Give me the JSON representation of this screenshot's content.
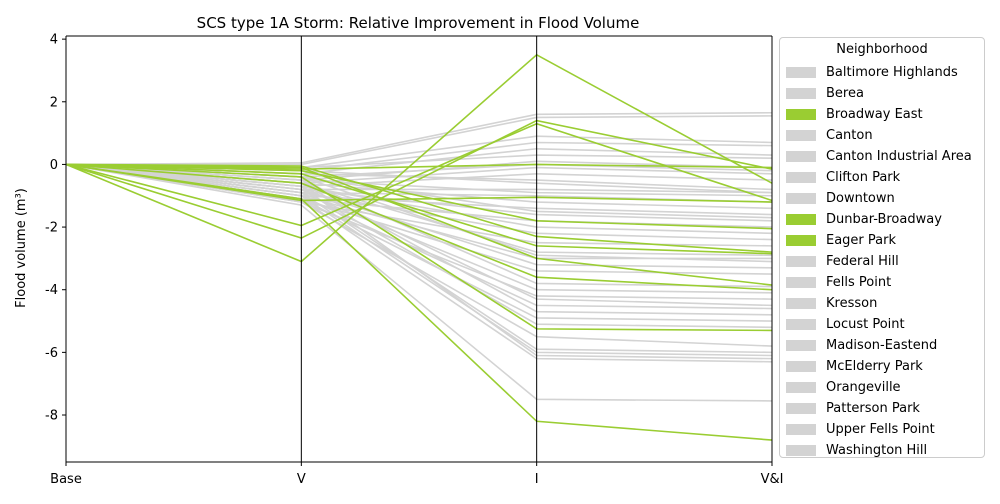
{
  "chart_data": {
    "type": "line",
    "title": "SCS type 1A Storm: Relative Improvement in Flood Volume",
    "xlabel": "",
    "ylabel": "Flood volume (m³)",
    "x": [
      "Base",
      "V",
      "I",
      "V&I"
    ],
    "ylim": [
      -9.5,
      4.1
    ],
    "yticks": [
      4,
      2,
      0,
      -2,
      -4,
      -6,
      -8
    ],
    "grid": false,
    "legend": {
      "title": "Neighborhood",
      "placement": "outside-right",
      "entries": [
        {
          "name": "Baltimore Highlands",
          "color": "#d3d3d3"
        },
        {
          "name": "Berea",
          "color": "#d3d3d3"
        },
        {
          "name": "Broadway East",
          "color": "#9acd32"
        },
        {
          "name": "Canton",
          "color": "#d3d3d3"
        },
        {
          "name": "Canton Industrial Area",
          "color": "#d3d3d3"
        },
        {
          "name": "Clifton Park",
          "color": "#d3d3d3"
        },
        {
          "name": "Downtown",
          "color": "#d3d3d3"
        },
        {
          "name": "Dunbar-Broadway",
          "color": "#9acd32"
        },
        {
          "name": "Eager Park",
          "color": "#9acd32"
        },
        {
          "name": "Federal Hill",
          "color": "#d3d3d3"
        },
        {
          "name": "Fells Point",
          "color": "#d3d3d3"
        },
        {
          "name": "Kresson",
          "color": "#d3d3d3"
        },
        {
          "name": "Locust Point",
          "color": "#d3d3d3"
        },
        {
          "name": "Madison-Eastend",
          "color": "#d3d3d3"
        },
        {
          "name": "McElderry Park",
          "color": "#d3d3d3"
        },
        {
          "name": "Orangeville",
          "color": "#d3d3d3"
        },
        {
          "name": "Patterson Park",
          "color": "#d3d3d3"
        },
        {
          "name": "Upper Fells Point",
          "color": "#d3d3d3"
        },
        {
          "name": "Washington Hill",
          "color": "#d3d3d3"
        }
      ]
    },
    "colors": {
      "highlight": "#9acd32",
      "other": "#d3d3d3",
      "axis": "#000000"
    },
    "series_gray": [
      [
        0,
        0.05,
        1.6,
        1.65
      ],
      [
        0,
        0.0,
        1.5,
        1.55
      ],
      [
        0,
        -0.1,
        0.9,
        0.7
      ],
      [
        0,
        -0.2,
        0.7,
        0.6
      ],
      [
        0,
        -0.3,
        0.5,
        0.3
      ],
      [
        0,
        -0.1,
        0.3,
        0.2
      ],
      [
        0,
        -0.5,
        0.1,
        -0.1
      ],
      [
        0,
        -0.4,
        0.0,
        -0.2
      ],
      [
        0,
        -0.6,
        -0.1,
        -0.3
      ],
      [
        0,
        -0.7,
        -0.3,
        -0.5
      ],
      [
        0,
        -0.3,
        -0.5,
        -0.8
      ],
      [
        0,
        -0.8,
        -0.8,
        -0.9
      ],
      [
        0,
        -0.5,
        -0.9,
        -1.0
      ],
      [
        0,
        -0.9,
        -1.0,
        -1.2
      ],
      [
        0,
        -0.6,
        -1.2,
        -1.4
      ],
      [
        0,
        -1.0,
        -1.4,
        -1.6
      ],
      [
        0,
        -0.4,
        -1.5,
        -1.7
      ],
      [
        0,
        -0.8,
        -1.6,
        -1.8
      ],
      [
        0,
        -1.1,
        -1.8,
        -2.0
      ],
      [
        0,
        -0.7,
        -2.0,
        -2.2
      ],
      [
        0,
        -0.9,
        -2.2,
        -2.4
      ],
      [
        0,
        -1.2,
        -2.5,
        -2.6
      ],
      [
        0,
        -0.6,
        -2.8,
        -2.9
      ],
      [
        0,
        -1.0,
        -3.0,
        -3.0
      ],
      [
        0,
        -0.8,
        -3.2,
        -3.3
      ],
      [
        0,
        -1.1,
        -3.4,
        -3.5
      ],
      [
        0,
        -0.5,
        -3.8,
        -3.9
      ],
      [
        0,
        -0.9,
        -4.0,
        -4.1
      ],
      [
        0,
        -1.2,
        -4.2,
        -4.3
      ],
      [
        0,
        -0.7,
        -4.3,
        -4.5
      ],
      [
        0,
        -1.0,
        -4.5,
        -4.6
      ],
      [
        0,
        -0.6,
        -4.7,
        -4.8
      ],
      [
        0,
        -1.1,
        -4.9,
        -5.0
      ],
      [
        0,
        -0.8,
        -5.1,
        -5.2
      ],
      [
        0,
        -1.2,
        -5.5,
        -5.8
      ],
      [
        0,
        -0.9,
        -5.9,
        -6.0
      ],
      [
        0,
        -1.0,
        -6.0,
        -6.1
      ],
      [
        0,
        -0.7,
        -6.1,
        -6.2
      ],
      [
        0,
        -1.1,
        -6.2,
        -6.3
      ],
      [
        0,
        -1.3,
        -7.5,
        -7.55
      ],
      [
        0,
        -0.2,
        -0.6,
        -0.9
      ],
      [
        0,
        -0.4,
        -2.9,
        -3.1
      ]
    ],
    "series_green": [
      [
        0,
        -3.1,
        3.5,
        -0.6
      ],
      [
        0,
        -2.35,
        1.4,
        -0.15
      ],
      [
        0,
        -1.95,
        1.3,
        -1.15
      ],
      [
        0,
        -1.15,
        -1.05,
        -1.2
      ],
      [
        0,
        -0.2,
        -1.8,
        -2.05
      ],
      [
        0,
        -0.05,
        -2.3,
        -2.8
      ],
      [
        0,
        -0.3,
        -2.6,
        -2.85
      ],
      [
        0,
        -0.1,
        -3.0,
        -3.85
      ],
      [
        0,
        -0.6,
        -3.6,
        -4.0
      ],
      [
        0,
        -0.4,
        -5.25,
        -5.3
      ],
      [
        0,
        -1.1,
        -8.2,
        -8.8
      ],
      [
        0,
        -0.15,
        0.0,
        -0.1
      ]
    ]
  }
}
